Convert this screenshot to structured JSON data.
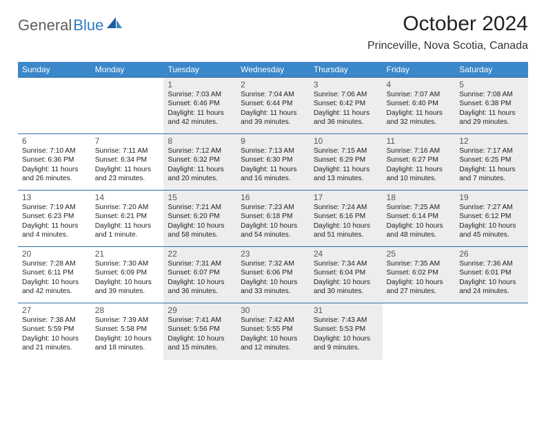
{
  "brand": {
    "part1": "General",
    "part2": "Blue"
  },
  "title": "October 2024",
  "location": "Princeville, Nova Scotia, Canada",
  "colors": {
    "header_bg": "#3a87c9",
    "header_text": "#ffffff",
    "row_border": "#2e6ea8",
    "shaded_bg": "#ededed",
    "brand_gray": "#5c5c5c",
    "brand_blue": "#2f7abf"
  },
  "day_labels": [
    "Sunday",
    "Monday",
    "Tuesday",
    "Wednesday",
    "Thursday",
    "Friday",
    "Saturday"
  ],
  "weeks": [
    [
      null,
      null,
      {
        "n": "1",
        "shaded": true,
        "sunrise": "7:03 AM",
        "sunset": "6:46 PM",
        "daylight": "11 hours and 42 minutes."
      },
      {
        "n": "2",
        "shaded": true,
        "sunrise": "7:04 AM",
        "sunset": "6:44 PM",
        "daylight": "11 hours and 39 minutes."
      },
      {
        "n": "3",
        "shaded": true,
        "sunrise": "7:06 AM",
        "sunset": "6:42 PM",
        "daylight": "11 hours and 36 minutes."
      },
      {
        "n": "4",
        "shaded": true,
        "sunrise": "7:07 AM",
        "sunset": "6:40 PM",
        "daylight": "11 hours and 32 minutes."
      },
      {
        "n": "5",
        "shaded": true,
        "sunrise": "7:08 AM",
        "sunset": "6:38 PM",
        "daylight": "11 hours and 29 minutes."
      }
    ],
    [
      {
        "n": "6",
        "shaded": false,
        "sunrise": "7:10 AM",
        "sunset": "6:36 PM",
        "daylight": "11 hours and 26 minutes."
      },
      {
        "n": "7",
        "shaded": false,
        "sunrise": "7:11 AM",
        "sunset": "6:34 PM",
        "daylight": "11 hours and 23 minutes."
      },
      {
        "n": "8",
        "shaded": true,
        "sunrise": "7:12 AM",
        "sunset": "6:32 PM",
        "daylight": "11 hours and 20 minutes."
      },
      {
        "n": "9",
        "shaded": true,
        "sunrise": "7:13 AM",
        "sunset": "6:30 PM",
        "daylight": "11 hours and 16 minutes."
      },
      {
        "n": "10",
        "shaded": true,
        "sunrise": "7:15 AM",
        "sunset": "6:29 PM",
        "daylight": "11 hours and 13 minutes."
      },
      {
        "n": "11",
        "shaded": true,
        "sunrise": "7:16 AM",
        "sunset": "6:27 PM",
        "daylight": "11 hours and 10 minutes."
      },
      {
        "n": "12",
        "shaded": true,
        "sunrise": "7:17 AM",
        "sunset": "6:25 PM",
        "daylight": "11 hours and 7 minutes."
      }
    ],
    [
      {
        "n": "13",
        "shaded": false,
        "sunrise": "7:19 AM",
        "sunset": "6:23 PM",
        "daylight": "11 hours and 4 minutes."
      },
      {
        "n": "14",
        "shaded": false,
        "sunrise": "7:20 AM",
        "sunset": "6:21 PM",
        "daylight": "11 hours and 1 minute."
      },
      {
        "n": "15",
        "shaded": true,
        "sunrise": "7:21 AM",
        "sunset": "6:20 PM",
        "daylight": "10 hours and 58 minutes."
      },
      {
        "n": "16",
        "shaded": true,
        "sunrise": "7:23 AM",
        "sunset": "6:18 PM",
        "daylight": "10 hours and 54 minutes."
      },
      {
        "n": "17",
        "shaded": true,
        "sunrise": "7:24 AM",
        "sunset": "6:16 PM",
        "daylight": "10 hours and 51 minutes."
      },
      {
        "n": "18",
        "shaded": true,
        "sunrise": "7:25 AM",
        "sunset": "6:14 PM",
        "daylight": "10 hours and 48 minutes."
      },
      {
        "n": "19",
        "shaded": true,
        "sunrise": "7:27 AM",
        "sunset": "6:12 PM",
        "daylight": "10 hours and 45 minutes."
      }
    ],
    [
      {
        "n": "20",
        "shaded": false,
        "sunrise": "7:28 AM",
        "sunset": "6:11 PM",
        "daylight": "10 hours and 42 minutes."
      },
      {
        "n": "21",
        "shaded": false,
        "sunrise": "7:30 AM",
        "sunset": "6:09 PM",
        "daylight": "10 hours and 39 minutes."
      },
      {
        "n": "22",
        "shaded": true,
        "sunrise": "7:31 AM",
        "sunset": "6:07 PM",
        "daylight": "10 hours and 36 minutes."
      },
      {
        "n": "23",
        "shaded": true,
        "sunrise": "7:32 AM",
        "sunset": "6:06 PM",
        "daylight": "10 hours and 33 minutes."
      },
      {
        "n": "24",
        "shaded": true,
        "sunrise": "7:34 AM",
        "sunset": "6:04 PM",
        "daylight": "10 hours and 30 minutes."
      },
      {
        "n": "25",
        "shaded": true,
        "sunrise": "7:35 AM",
        "sunset": "6:02 PM",
        "daylight": "10 hours and 27 minutes."
      },
      {
        "n": "26",
        "shaded": true,
        "sunrise": "7:36 AM",
        "sunset": "6:01 PM",
        "daylight": "10 hours and 24 minutes."
      }
    ],
    [
      {
        "n": "27",
        "shaded": false,
        "sunrise": "7:38 AM",
        "sunset": "5:59 PM",
        "daylight": "10 hours and 21 minutes."
      },
      {
        "n": "28",
        "shaded": false,
        "sunrise": "7:39 AM",
        "sunset": "5:58 PM",
        "daylight": "10 hours and 18 minutes."
      },
      {
        "n": "29",
        "shaded": true,
        "sunrise": "7:41 AM",
        "sunset": "5:56 PM",
        "daylight": "10 hours and 15 minutes."
      },
      {
        "n": "30",
        "shaded": true,
        "sunrise": "7:42 AM",
        "sunset": "5:55 PM",
        "daylight": "10 hours and 12 minutes."
      },
      {
        "n": "31",
        "shaded": true,
        "sunrise": "7:43 AM",
        "sunset": "5:53 PM",
        "daylight": "10 hours and 9 minutes."
      },
      null,
      null
    ]
  ],
  "label_prefix": {
    "sunrise": "Sunrise: ",
    "sunset": "Sunset: ",
    "daylight": "Daylight: "
  }
}
